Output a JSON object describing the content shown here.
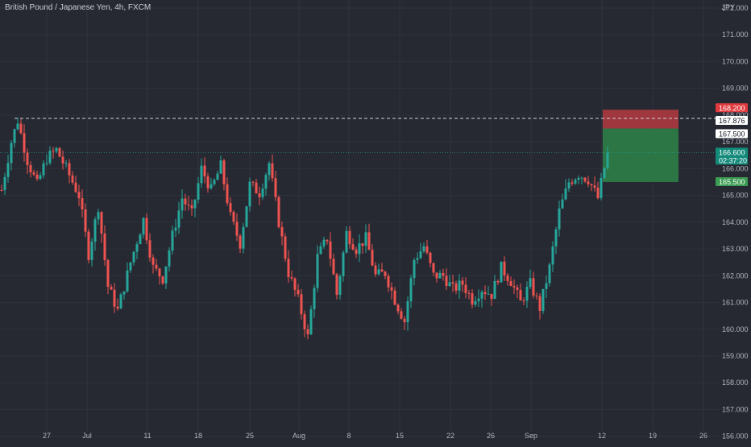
{
  "title": "British Pound / Japanese Yen, 4h, FXCM",
  "currency": "JPY",
  "colors": {
    "background": "#262932",
    "up": "#26a69a",
    "down": "#ef5350",
    "text": "#b2b5be",
    "stop_zone": "#b53a41",
    "target_zone": "#2e7d46"
  },
  "chart_data": {
    "type": "candlestick",
    "title": "British Pound / Japanese Yen, 4h, FXCM",
    "symbol": "GBPJPY",
    "interval": "4h",
    "source": "FXCM",
    "ylim": [
      155.75,
      172.3
    ],
    "y_ticks": [
      "156.000",
      "157.000",
      "158.000",
      "159.000",
      "160.000",
      "161.000",
      "162.000",
      "163.000",
      "164.000",
      "165.000",
      "166.000",
      "167.000",
      "168.000",
      "169.000",
      "170.000",
      "171.000",
      "172.000"
    ],
    "x_ticks": [
      "27",
      "Jul",
      "11",
      "18",
      "25",
      "Aug",
      "8",
      "15",
      "22",
      "26",
      "Sep",
      "12",
      "19",
      "26"
    ],
    "anchors": [
      {
        "t": 0,
        "v": 165.2
      },
      {
        "t": 3,
        "v": 167.0
      },
      {
        "t": 5,
        "v": 167.8
      },
      {
        "t": 8,
        "v": 166.3
      },
      {
        "t": 11,
        "v": 165.4
      },
      {
        "t": 14,
        "v": 166.4
      },
      {
        "t": 17,
        "v": 166.7
      },
      {
        "t": 20,
        "v": 166.0
      },
      {
        "t": 24,
        "v": 165.0
      },
      {
        "t": 27,
        "v": 162.8
      },
      {
        "t": 30,
        "v": 164.6
      },
      {
        "t": 33,
        "v": 161.6
      },
      {
        "t": 36,
        "v": 160.7
      },
      {
        "t": 40,
        "v": 162.5
      },
      {
        "t": 44,
        "v": 164.1
      },
      {
        "t": 47,
        "v": 162.3
      },
      {
        "t": 50,
        "v": 161.9
      },
      {
        "t": 53,
        "v": 163.5
      },
      {
        "t": 56,
        "v": 164.9
      },
      {
        "t": 59,
        "v": 164.3
      },
      {
        "t": 62,
        "v": 166.0
      },
      {
        "t": 65,
        "v": 165.2
      },
      {
        "t": 68,
        "v": 166.1
      },
      {
        "t": 71,
        "v": 164.2
      },
      {
        "t": 74,
        "v": 163.2
      },
      {
        "t": 77,
        "v": 165.4
      },
      {
        "t": 80,
        "v": 165.1
      },
      {
        "t": 83,
        "v": 166.2
      },
      {
        "t": 86,
        "v": 164.0
      },
      {
        "t": 89,
        "v": 162.1
      },
      {
        "t": 92,
        "v": 161.1
      },
      {
        "t": 95,
        "v": 159.7
      },
      {
        "t": 98,
        "v": 162.7
      },
      {
        "t": 101,
        "v": 163.4
      },
      {
        "t": 104,
        "v": 161.3
      },
      {
        "t": 107,
        "v": 163.6
      },
      {
        "t": 110,
        "v": 163.0
      },
      {
        "t": 113,
        "v": 163.4
      },
      {
        "t": 116,
        "v": 162.0
      },
      {
        "t": 119,
        "v": 162.1
      },
      {
        "t": 122,
        "v": 161.1
      },
      {
        "t": 125,
        "v": 160.3
      },
      {
        "t": 128,
        "v": 162.6
      },
      {
        "t": 131,
        "v": 163.1
      },
      {
        "t": 134,
        "v": 162.0
      },
      {
        "t": 137,
        "v": 162.0
      },
      {
        "t": 140,
        "v": 161.5
      },
      {
        "t": 143,
        "v": 161.7
      },
      {
        "t": 146,
        "v": 161.1
      },
      {
        "t": 149,
        "v": 161.5
      },
      {
        "t": 152,
        "v": 161.3
      },
      {
        "t": 155,
        "v": 162.3
      },
      {
        "t": 158,
        "v": 161.8
      },
      {
        "t": 161,
        "v": 161.0
      },
      {
        "t": 164,
        "v": 161.7
      },
      {
        "t": 167,
        "v": 160.8
      },
      {
        "t": 170,
        "v": 162.3
      },
      {
        "t": 173,
        "v": 164.4
      },
      {
        "t": 176,
        "v": 165.5
      },
      {
        "t": 179,
        "v": 165.8
      },
      {
        "t": 182,
        "v": 165.6
      },
      {
        "t": 185,
        "v": 164.9
      },
      {
        "t": 188,
        "v": 166.6
      }
    ],
    "lines": [
      {
        "name": "high-level",
        "value": 167.876,
        "style": "dashed"
      },
      {
        "name": "current-price",
        "value": 166.6,
        "style": "dotted"
      }
    ],
    "position": {
      "type": "short",
      "entry": 167.5,
      "stop": 168.2,
      "target": 165.5
    },
    "price_labels": [
      {
        "text": "168.200",
        "value": 168.2,
        "style": "red"
      },
      {
        "text": "167.876",
        "value": 167.876,
        "style": "white"
      },
      {
        "text": "167.500",
        "value": 167.5,
        "style": "white"
      },
      {
        "text": "166.600",
        "value": 166.6,
        "style": "teal"
      },
      {
        "text": "02:37:20",
        "value": 166.6,
        "style": "teal-sub"
      },
      {
        "text": "165.500",
        "value": 165.5,
        "style": "green"
      }
    ]
  }
}
